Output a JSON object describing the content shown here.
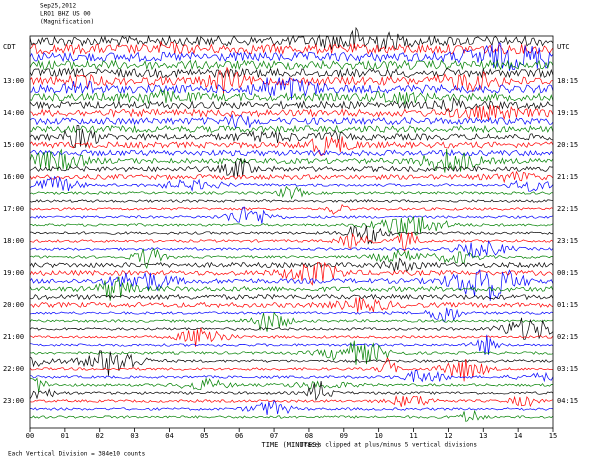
{
  "chart_data": {
    "type": "helicorder",
    "header": [
      "Sep25,2012",
      "LRO1 BHZ US 00",
      "(Magnification)"
    ],
    "left_axis_label": "CDT",
    "right_axis_label": "UTC",
    "left_hours": [
      "13:00",
      "14:00",
      "15:00",
      "16:00",
      "17:00",
      "18:00",
      "19:00",
      "20:00",
      "21:00",
      "22:00",
      "23:00"
    ],
    "right_hours": [
      "18:15",
      "19:15",
      "20:15",
      "21:15",
      "22:15",
      "23:15",
      "00:15",
      "01:15",
      "02:15",
      "03:15",
      "04:15"
    ],
    "xlabel": "TIME (MINUTES)",
    "xlim": [
      0,
      15
    ],
    "xticks": [
      {
        "value": 0,
        "label": "00"
      },
      {
        "value": 1,
        "label": "01"
      },
      {
        "value": 2,
        "label": "02"
      },
      {
        "value": 3,
        "label": "03"
      },
      {
        "value": 4,
        "label": "04"
      },
      {
        "value": 5,
        "label": "05"
      },
      {
        "value": 6,
        "label": "06"
      },
      {
        "value": 7,
        "label": "07"
      },
      {
        "value": 8,
        "label": "08"
      },
      {
        "value": 9,
        "label": "09"
      },
      {
        "value": 10,
        "label": "10"
      },
      {
        "value": 11,
        "label": "11"
      },
      {
        "value": 12,
        "label": "12"
      },
      {
        "value": 13,
        "label": "13"
      },
      {
        "value": 14,
        "label": "14"
      },
      {
        "value": 15,
        "label": "15"
      }
    ],
    "footer_left": "Each Vertical Division = 384e10 counts",
    "footer_right": "Traces clipped at plus/minus 5 vertical divisions",
    "trace_colors": [
      "#000000",
      "#ff0000",
      "#0000ff",
      "#008000"
    ]
  }
}
